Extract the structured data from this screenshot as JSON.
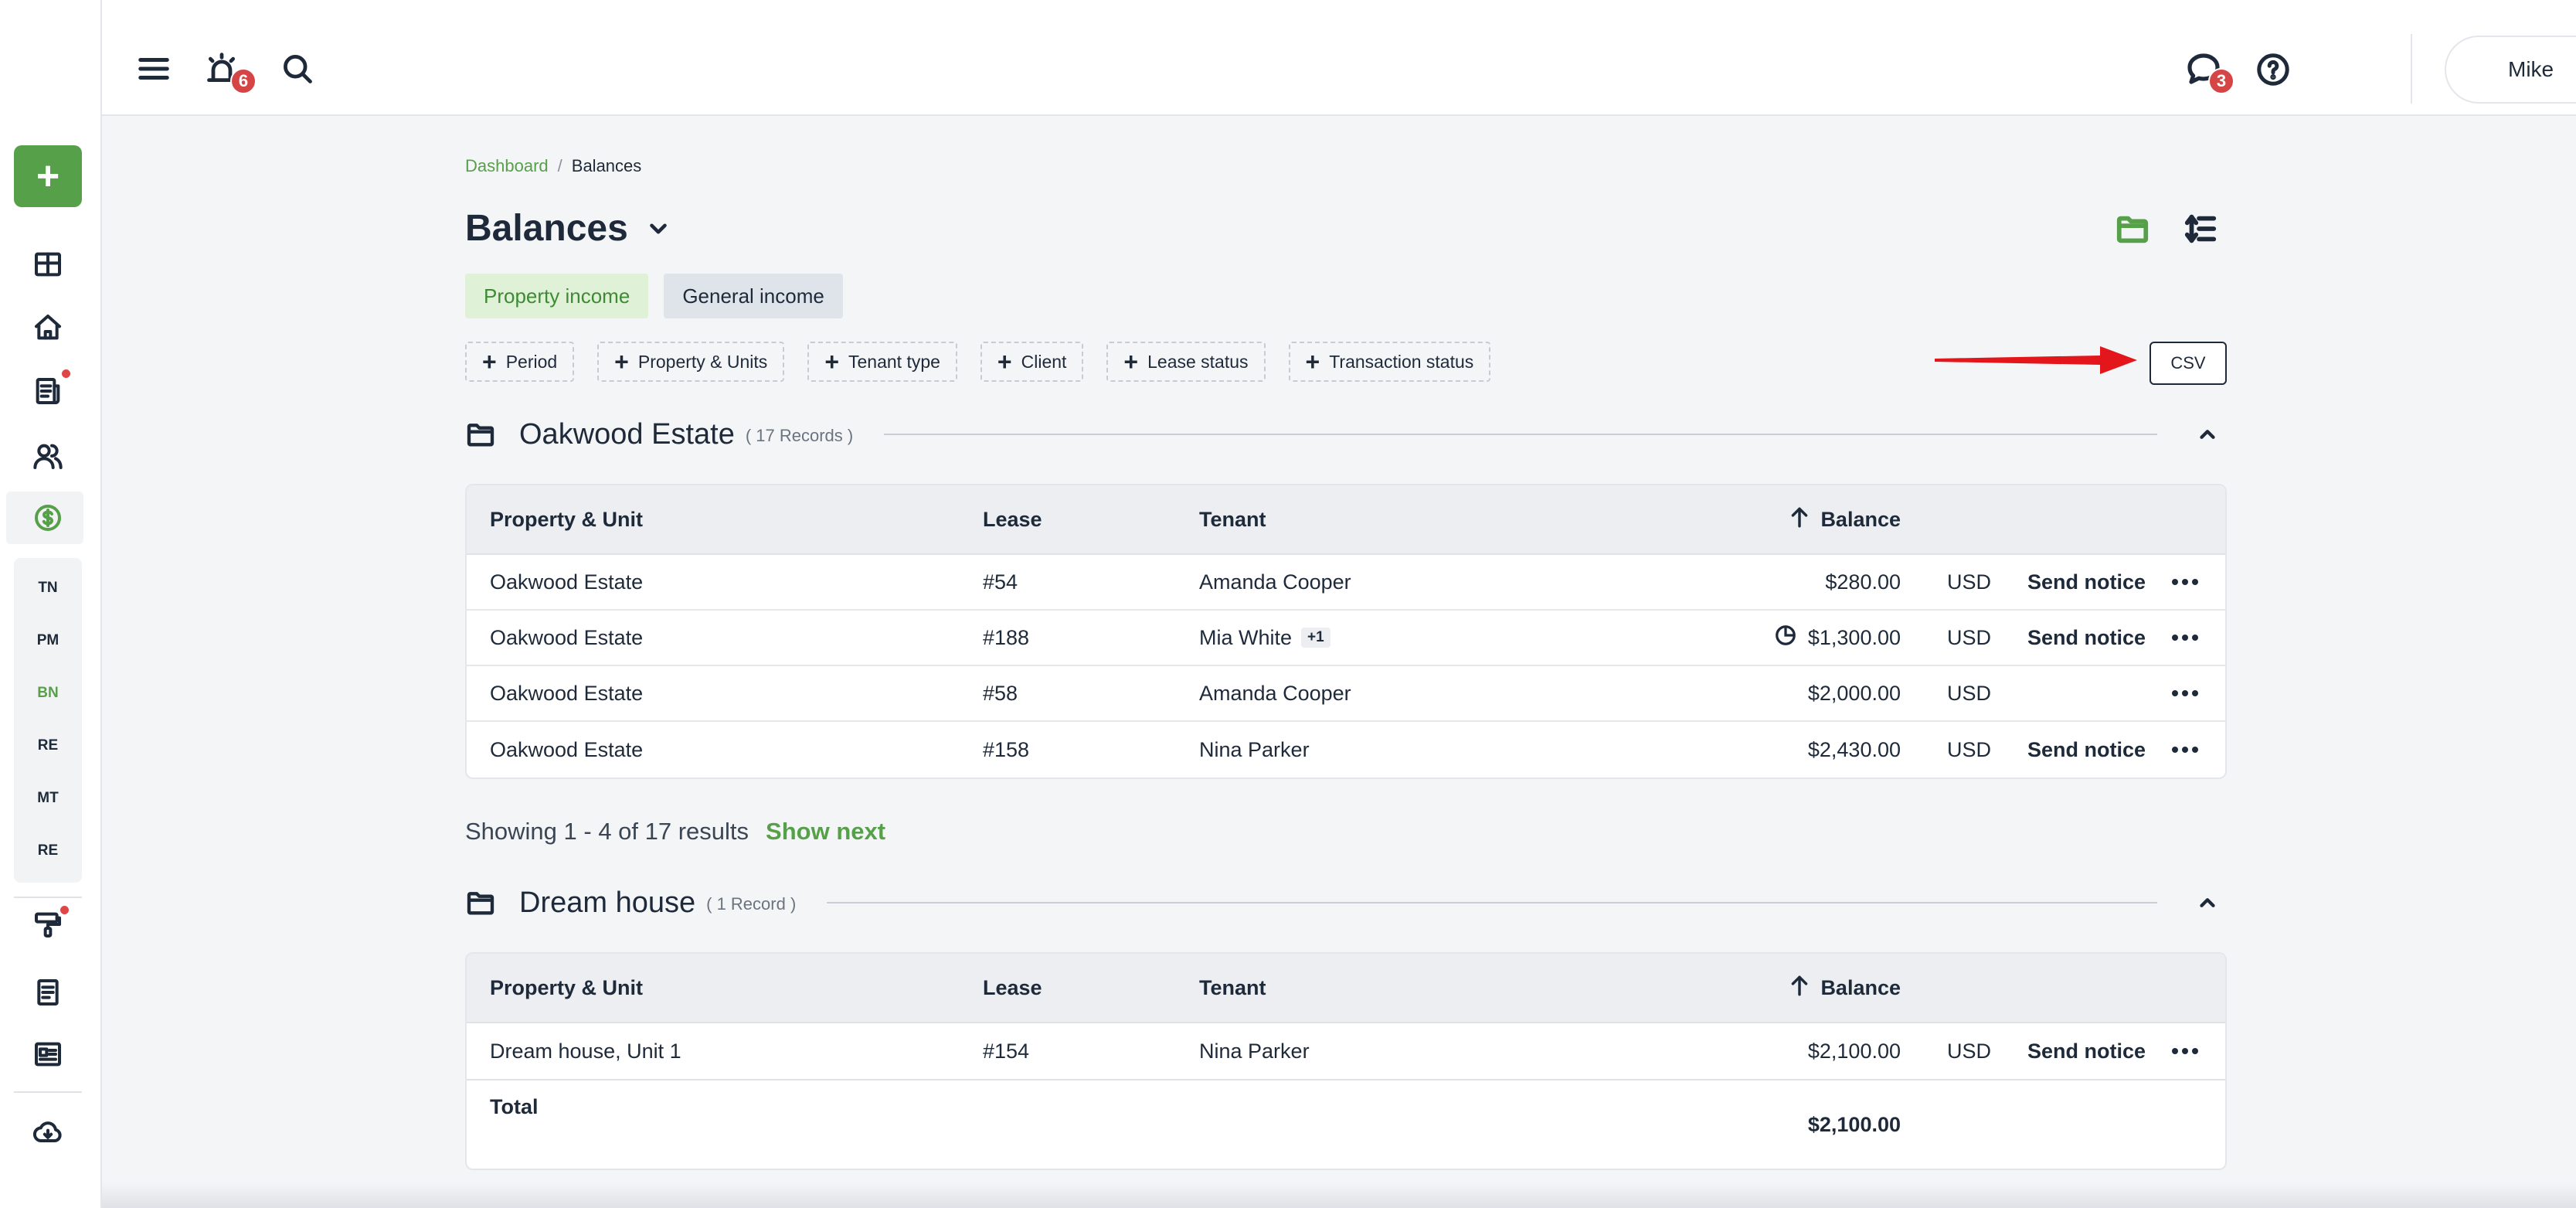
{
  "sidebar": {
    "add_label": "+",
    "icons": [
      "dashboard-icon",
      "home-icon",
      "leases-icon",
      "people-icon",
      "dollar-icon"
    ],
    "tags": [
      "TN",
      "PM",
      "BN",
      "RE",
      "MT",
      "RE"
    ],
    "active_tag": "BN",
    "bottom_icons": [
      "maintenance-icon",
      "document-icon",
      "news-icon",
      "cloud-download-icon"
    ]
  },
  "topbar": {
    "notifications_count": "6",
    "messages_count": "3",
    "user_name": "Mike"
  },
  "breadcrumb": {
    "root": "Dashboard",
    "separator": "/",
    "current": "Balances"
  },
  "page": {
    "title": "Balances"
  },
  "tabs": [
    "Property income",
    "General income"
  ],
  "filters": [
    "Period",
    "Property & Units",
    "Tenant type",
    "Client",
    "Lease status",
    "Transaction status"
  ],
  "csv_label": "CSV",
  "columns": {
    "property": "Property & Unit",
    "lease": "Lease",
    "tenant": "Tenant",
    "balance": "Balance"
  },
  "groups": [
    {
      "name": "Oakwood Estate",
      "count": "( 17 Records )",
      "rows": [
        {
          "property": "Oakwood Estate",
          "lease": "#54",
          "tenant": "Amanda Cooper",
          "extra": "",
          "balance": "$280.00",
          "currency": "USD",
          "action": "Send notice"
        },
        {
          "property": "Oakwood Estate",
          "lease": "#188",
          "tenant": "Mia White",
          "extra": "+1",
          "balance": "$1,300.00",
          "currency": "USD",
          "action": "Send notice"
        },
        {
          "property": "Oakwood Estate",
          "lease": "#58",
          "tenant": "Amanda Cooper",
          "extra": "",
          "balance": "$2,000.00",
          "currency": "USD",
          "action": ""
        },
        {
          "property": "Oakwood Estate",
          "lease": "#158",
          "tenant": "Nina Parker",
          "extra": "",
          "balance": "$2,430.00",
          "currency": "USD",
          "action": "Send notice"
        }
      ],
      "showing": "Showing 1 - 4 of 17 results",
      "show_next": "Show next"
    },
    {
      "name": "Dream house",
      "count": "( 1 Record )",
      "rows": [
        {
          "property": "Dream house, Unit 1",
          "lease": "#154",
          "tenant": "Nina Parker",
          "extra": "",
          "balance": "$2,100.00",
          "currency": "USD",
          "action": "Send notice"
        }
      ],
      "total_label": "Total",
      "total_value": "$2,100.00"
    }
  ],
  "colors": {
    "brand_green": "#57a04a",
    "badge_red": "#d64545",
    "arrow_red": "#e3161b"
  }
}
